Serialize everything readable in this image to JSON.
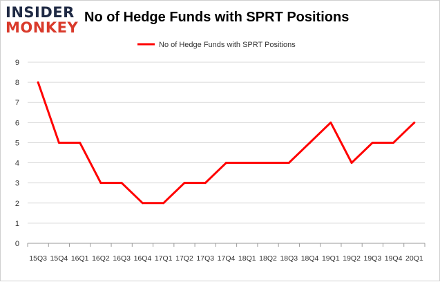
{
  "logo": {
    "line1": "INSIDER",
    "line2": "MONKEY"
  },
  "chart_data": {
    "type": "line",
    "title": "No of Hedge Funds with SPRT Positions",
    "categories": [
      "2015Q3",
      "2015Q4",
      "2016Q1",
      "2016Q2",
      "2016Q3",
      "2016Q4",
      "2017Q1",
      "2017Q2",
      "2017Q3",
      "2017Q4",
      "2018Q1",
      "2018Q2",
      "2018Q3",
      "2018Q4",
      "2019Q1",
      "2019Q2",
      "2019Q3",
      "2019Q4",
      "2020Q1"
    ],
    "series": [
      {
        "name": "No of Hedge Funds with SPRT Positions",
        "values": [
          8,
          5,
          5,
          3,
          3,
          2,
          2,
          3,
          3,
          4,
          4,
          4,
          4,
          5,
          6,
          4,
          5,
          5,
          6
        ],
        "color": "#ff0000"
      }
    ],
    "ylim": [
      0,
      9
    ],
    "yticks": [
      0,
      1,
      2,
      3,
      4,
      5,
      6,
      7,
      8,
      9
    ],
    "grid": true,
    "legend": "top-center"
  }
}
